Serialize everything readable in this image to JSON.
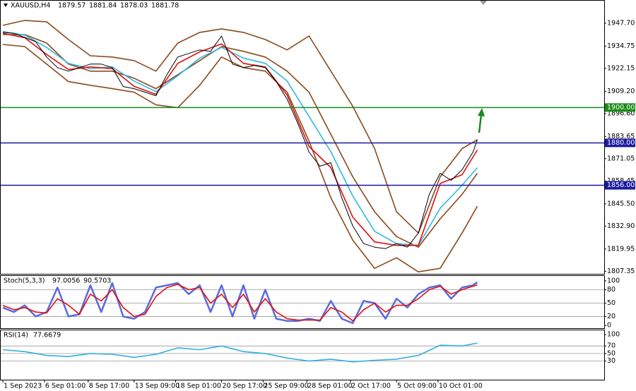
{
  "chart_data": [
    {
      "type": "line",
      "symbol": "XAUUSD,H4",
      "ohlc": [
        1879.57,
        1881.84,
        1878.03,
        1881.78
      ],
      "xlim": [
        -1,
        275
      ],
      "xticks": [
        {
          "value": 0,
          "label": "1 Sep 2023"
        },
        {
          "value": 19,
          "label": "6 Sep 01:00"
        },
        {
          "value": 39,
          "label": "8 Sep 17:00"
        },
        {
          "value": 60,
          "label": "13 Sep 09:00"
        },
        {
          "value": 79,
          "label": "18 Sep 01:00"
        },
        {
          "value": 100,
          "label": "20 Sep 17:00"
        },
        {
          "value": 119,
          "label": "25 Sep 09:00"
        },
        {
          "value": 139,
          "label": "28 Sep 01:00"
        },
        {
          "value": 159,
          "label": "2 Oct 17:00"
        },
        {
          "value": 180,
          "label": "5 Oct 09:00"
        },
        {
          "value": 199,
          "label": "10 Oct 01:00"
        }
      ],
      "ylim": [
        1805.9,
        1960.45
      ],
      "yticks": [
        {
          "value": 1947.7,
          "label": "1947.70"
        },
        1934.75,
        1922.15,
        {
          "value": 1909.2,
          "label": "1909.20"
        },
        {
          "value": 1896.6,
          "label": "1896.60"
        },
        1883.65,
        1871.05,
        1858.45,
        {
          "value": 1845.5,
          "label": "1845.50"
        },
        {
          "value": 1832.9,
          "label": "1832.90"
        },
        1819.95,
        1807.35
      ],
      "hlines": [
        {
          "value": 1900,
          "label": "1900.00",
          "color": "#1a8a1a"
        },
        {
          "value": 1880,
          "label": "1880.00",
          "color": "#1a1aa0"
        },
        {
          "value": 1856,
          "label": "1856.00",
          "color": "#1a1aa0"
        }
      ],
      "series": [
        {
          "color": "#8a4a1c",
          "x": [
            0,
            10,
            20,
            30,
            40,
            50,
            60,
            70,
            80,
            90,
            100,
            110,
            120,
            130,
            140,
            150,
            160,
            170,
            180,
            190,
            200,
            210,
            217
          ],
          "values": [
            1946.5,
            1949.3,
            1948.5,
            1938.5,
            1929.3,
            1928.6,
            1926.6,
            1920.6,
            1936.5,
            1942.5,
            1944.5,
            1942.5,
            1938.5,
            1932.6,
            1940.5,
            1920.6,
            1900.7,
            1876.8,
            1841,
            1829,
            1860.8,
            1876.8,
            1881.8
          ]
        },
        {
          "color": "#8a4a1c",
          "x": [
            0,
            10,
            20,
            30,
            40,
            50,
            60,
            70,
            80,
            90,
            100,
            110,
            120,
            130,
            140,
            150,
            160,
            170,
            180,
            190,
            200,
            210,
            217
          ],
          "values": [
            1935.7,
            1934.5,
            1924.6,
            1914.7,
            1912.6,
            1910.7,
            1908.7,
            1901.5,
            1899.9,
            1912.6,
            1928.6,
            1922.6,
            1920.6,
            1908.7,
            1881,
            1848.9,
            1825,
            1809,
            1815,
            1807,
            1809,
            1829,
            1844.2
          ]
        },
        {
          "color": "#8a4a1c",
          "x": [
            0,
            10,
            20,
            30,
            40,
            50,
            60,
            70,
            80,
            90,
            100,
            110,
            120,
            130,
            140,
            150,
            160,
            170,
            180,
            190,
            200,
            210,
            217
          ],
          "values": [
            1941.3,
            1941.3,
            1936.5,
            1924.6,
            1920.6,
            1920.6,
            1916.6,
            1910.7,
            1918.6,
            1926.6,
            1934.5,
            1931.8,
            1928.6,
            1920.6,
            1908.7,
            1884.8,
            1860.8,
            1841,
            1827,
            1821,
            1837,
            1850.9,
            1862.8
          ]
        },
        {
          "color": "#30b8e0",
          "x": [
            0,
            10,
            20,
            30,
            40,
            50,
            60,
            70,
            80,
            90,
            100,
            110,
            120,
            130,
            140,
            150,
            160,
            170,
            180,
            190,
            200,
            210,
            217
          ],
          "values": [
            1943,
            1941,
            1934,
            1925,
            1922,
            1923,
            1915,
            1909,
            1918,
            1928,
            1934,
            1928,
            1925,
            1915,
            1895,
            1875,
            1850,
            1830,
            1823,
            1822,
            1843,
            1856,
            1866
          ]
        },
        {
          "color": "#e01010",
          "x": [
            0,
            10,
            20,
            30,
            40,
            50,
            60,
            70,
            80,
            90,
            100,
            110,
            120,
            130,
            140,
            150,
            160,
            170,
            180,
            190,
            200,
            210,
            217
          ],
          "values": [
            1942,
            1939.5,
            1930,
            1921.5,
            1923,
            1922,
            1912,
            1907.5,
            1925,
            1931.5,
            1936,
            1925,
            1923,
            1907,
            1878,
            1866,
            1838,
            1824,
            1822,
            1822,
            1857,
            1862,
            1876
          ]
        },
        {
          "color": "#000000",
          "x": [
            0,
            5,
            10,
            15,
            20,
            25,
            30,
            35,
            40,
            45,
            50,
            55,
            60,
            65,
            70,
            75,
            80,
            85,
            90,
            95,
            100,
            105,
            110,
            115,
            120,
            125,
            130,
            135,
            140,
            145,
            150,
            155,
            160,
            165,
            170,
            175,
            180,
            185,
            190,
            195,
            200,
            205,
            210,
            215,
            217
          ],
          "values": [
            1942.5,
            1942,
            1939.7,
            1937.3,
            1928.6,
            1922.6,
            1920.6,
            1922.6,
            1924.6,
            1924.6,
            1922.6,
            1911.9,
            1910.7,
            1908.7,
            1906.7,
            1918.6,
            1928.6,
            1930.6,
            1932.6,
            1931.8,
            1940.5,
            1924.6,
            1922.6,
            1923.8,
            1922.6,
            1914.7,
            1904.7,
            1890.7,
            1874.8,
            1866.8,
            1868.8,
            1848.9,
            1833,
            1823,
            1821,
            1820.2,
            1823,
            1821,
            1829,
            1850.9,
            1862.8,
            1858.8,
            1864.8,
            1874.8,
            1881.8
          ]
        }
      ]
    },
    {
      "type": "line",
      "title": "Stoch(5,3,3)",
      "readings": [
        97.0056,
        90.5703
      ],
      "ylim": [
        -6.25,
        110.9
      ],
      "yticks": [
        100,
        80,
        50,
        20,
        0
      ],
      "levels": [
        80,
        50,
        20
      ],
      "series": [
        {
          "color": "#5a6ae0",
          "x": [
            0,
            5,
            10,
            15,
            20,
            25,
            30,
            35,
            40,
            45,
            50,
            55,
            60,
            65,
            70,
            75,
            80,
            85,
            90,
            95,
            100,
            105,
            110,
            115,
            120,
            125,
            130,
            135,
            140,
            145,
            150,
            155,
            160,
            165,
            170,
            175,
            180,
            185,
            190,
            195,
            200,
            205,
            210,
            215,
            217
          ],
          "values": [
            40,
            30,
            45,
            20,
            30,
            85,
            20,
            25,
            90,
            30,
            95,
            20,
            15,
            30,
            85,
            90,
            95,
            70,
            90,
            30,
            90,
            20,
            90,
            15,
            80,
            15,
            10,
            10,
            15,
            10,
            55,
            15,
            5,
            55,
            50,
            15,
            60,
            40,
            70,
            85,
            90,
            60,
            85,
            90,
            97.0056
          ]
        },
        {
          "color": "#e01010",
          "x": [
            0,
            5,
            10,
            15,
            20,
            25,
            30,
            35,
            40,
            45,
            50,
            55,
            60,
            65,
            70,
            75,
            80,
            85,
            90,
            95,
            100,
            105,
            110,
            115,
            120,
            125,
            130,
            135,
            140,
            145,
            150,
            155,
            160,
            165,
            170,
            175,
            180,
            185,
            190,
            195,
            200,
            205,
            210,
            215,
            217
          ],
          "values": [
            45,
            35,
            40,
            30,
            28,
            60,
            45,
            25,
            70,
            55,
            80,
            40,
            20,
            25,
            65,
            85,
            92,
            80,
            85,
            50,
            70,
            40,
            70,
            30,
            60,
            30,
            15,
            12,
            12,
            12,
            40,
            30,
            10,
            35,
            50,
            30,
            45,
            45,
            60,
            80,
            88,
            70,
            80,
            88,
            90.5703
          ]
        }
      ]
    },
    {
      "type": "line",
      "title": "RSI(14)",
      "readings": [
        77.6679
      ],
      "ylim": [
        -19.2,
        111.35
      ],
      "yticks": [
        100,
        70,
        50,
        30
      ],
      "levels": [
        70,
        50,
        30
      ],
      "series": [
        {
          "color": "#30b0e0",
          "x": [
            0,
            10,
            20,
            30,
            40,
            50,
            60,
            70,
            80,
            90,
            100,
            110,
            120,
            130,
            140,
            150,
            160,
            170,
            180,
            190,
            200,
            210,
            217
          ],
          "values": [
            60,
            55,
            45,
            42,
            50,
            48,
            40,
            48,
            65,
            60,
            70,
            55,
            50,
            38,
            30,
            35,
            28,
            32,
            35,
            45,
            72,
            70,
            77.6679
          ]
        }
      ]
    }
  ]
}
